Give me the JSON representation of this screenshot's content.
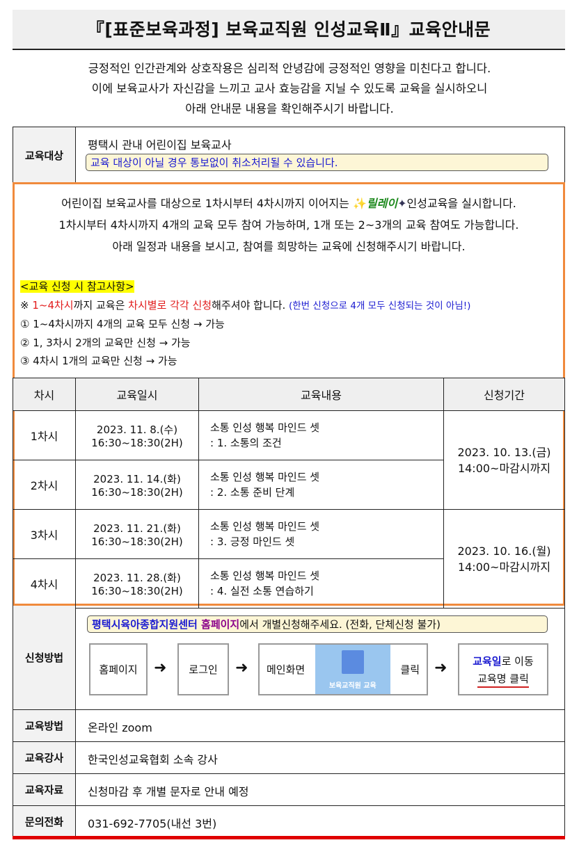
{
  "title": "『[표준보육과정] 보육교직원 인성교육Ⅱ』교육안내문",
  "intro": [
    "긍정적인 인간관계와 상호작용은 심리적 안녕감에 긍정적인 영향을 미친다고 합니다.",
    "이에 보육교사가 자신감을 느끼고 교사 효능감을 지닐 수 있도록 교육을 실시하오니",
    "아래 안내문 내용을 확인해주시기 바랍니다."
  ],
  "target": {
    "label": "교육대상",
    "value": "평택시 관내 어린이집 보육교사",
    "note": "교육 대상이 아닐 경우 통보없이 취소처리될 수 있습니다."
  },
  "desc": {
    "line1_a": "어린이집 보육교사를 대상으로 1차시부터 4차시까지 이어지는 ",
    "relay": "릴레이",
    "line1_b": "인성교육을 실시합니다.",
    "line2": "1차시부터 4차시까지 4개의 교육 모두 참여 가능하며, 1개 또는 2~3개의 교육 참여도 가능합니다.",
    "line3": "아래 일정과 내용을 보시고, 참여를 희망하는 교육에 신청해주시기 바랍니다."
  },
  "notes": {
    "heading": "<교육 신청 시 참고사항>",
    "mark": "※ ",
    "r1": "1~4차시",
    "t1": "까지 교육은 ",
    "r2": "차시별로 각각 신청",
    "t2": "해주셔야 합니다. ",
    "blue": "(한번 신청으로 4개 모두 신청되는 것이 아님!)",
    "items": [
      "① 1~4차시까지 4개의 교육 모두 신청 → 가능",
      "② 1, 3차시 2개의 교육만 신청 → 가능",
      "③ 4차시 1개의 교육만 신청 → 가능"
    ]
  },
  "schedule": {
    "headers": [
      "차시",
      "교육일시",
      "교육내용",
      "신청기간"
    ],
    "rows": [
      {
        "session": "1차시",
        "date": "2023. 11. 8.(수)",
        "time": "16:30~18:30(2H)",
        "title": "소통 인성 행복 마인드 셋",
        "sub": ": 1. 소통의 조건"
      },
      {
        "session": "2차시",
        "date": "2023. 11. 14.(화)",
        "time": "16:30~18:30(2H)",
        "title": "소통 인성 행복 마인드 셋",
        "sub": ": 2. 소통 준비 단계"
      },
      {
        "session": "3차시",
        "date": "2023. 11. 21.(화)",
        "time": "16:30~18:30(2H)",
        "title": "소통 인성 행복 마인드 셋",
        "sub": ": 3. 긍정 마인드 셋"
      },
      {
        "session": "4차시",
        "date": "2023. 11. 28.(화)",
        "time": "16:30~18:30(2H)",
        "title": "소통 인성 행복 마인드 셋",
        "sub": ": 4. 실전 소통 연습하기"
      }
    ],
    "periods": [
      {
        "date": "2023. 10. 13.(금)",
        "time": "14:00~마감시까지"
      },
      {
        "date": "2023. 10. 16.(월)",
        "time": "14:00~마감시까지"
      }
    ]
  },
  "apply": {
    "label": "신청방법",
    "note_a": "평택시육아종합지원센터 ",
    "note_b": "홈페이지",
    "note_c": "에서 개별신청해주세요. (전화, 단체신청 불가)",
    "steps": [
      "홈페이지",
      "로그인",
      "메인화면",
      "클릭"
    ],
    "banner": "보육교직원 교육",
    "last_a": "교육일",
    "last_b": "로 이동",
    "last_c": "교육명 클릭"
  },
  "info": [
    {
      "label": "교육방법",
      "value": "온라인 zoom"
    },
    {
      "label": "교육강사",
      "value": "한국인성교육협회 소속 강사"
    },
    {
      "label": "교육자료",
      "value": "신청마감 후 개별 문자로 안내 예정"
    },
    {
      "label": "문의전화",
      "value": "031-692-7705(내선 3번)"
    }
  ],
  "colors": {
    "orange": "#f08a3c",
    "red": "#e21b1b",
    "blue": "#1a1ad0",
    "highlight": "#ffff00"
  }
}
